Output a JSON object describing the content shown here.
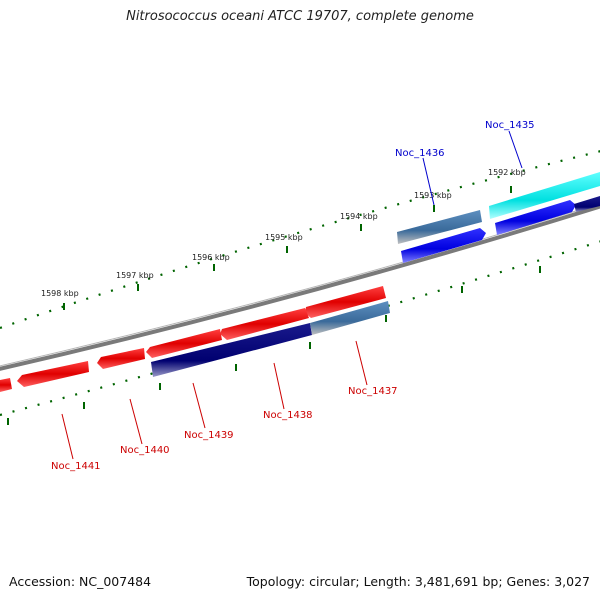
{
  "title": "Nitrosococcus oceani ATCC 19707, complete genome",
  "accession": "Accession: NC_007484",
  "summary": "Topology: circular; Length: 3,481,691 bp; Genes: 3,027",
  "colors": {
    "forward_gene": "#ff0000",
    "reverse_gene": "#000080",
    "alt_forward": "#4682b4",
    "blue_gene": "#0000ff",
    "cyan_gene": "#00ffff",
    "backbone": "#808080",
    "tick": "#006400",
    "label_red": "#cc0000",
    "label_blue": "#0000cc"
  },
  "scale": {
    "labels": [
      "1592 kbp",
      "1593 kbp",
      "1594 kbp",
      "1595 kbp",
      "1596 kbp",
      "1597 kbp",
      "1598 kbp"
    ]
  },
  "gene_labels": [
    {
      "name": "Noc_1435",
      "color": "blue"
    },
    {
      "name": "Noc_1436",
      "color": "blue"
    },
    {
      "name": "Noc_1437",
      "color": "red"
    },
    {
      "name": "Noc_1438",
      "color": "red"
    },
    {
      "name": "Noc_1439",
      "color": "red"
    },
    {
      "name": "Noc_1440",
      "color": "red"
    },
    {
      "name": "Noc_1441",
      "color": "red"
    }
  ]
}
